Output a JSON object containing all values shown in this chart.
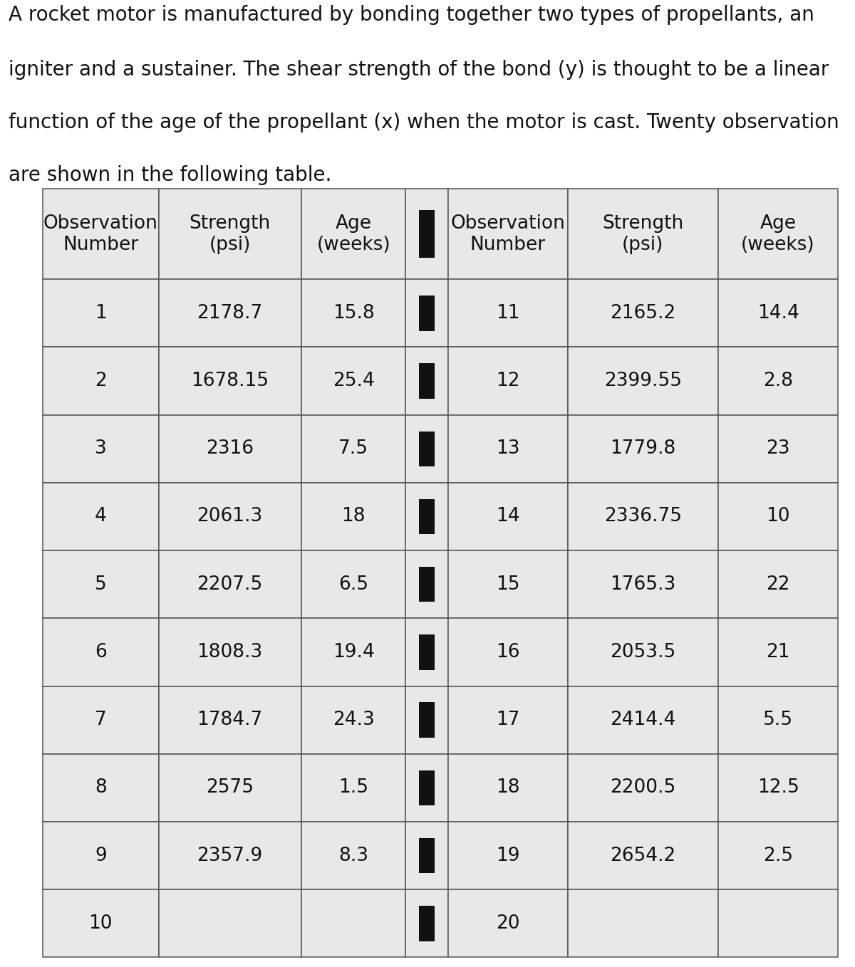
{
  "description_lines": [
    "A rocket motor is manufactured by bonding together two types of propellants, an",
    "igniter and a sustainer. The shear strength of the bond (y) is thought to be a linear",
    "function of the age of the propellant (x) when the motor is cast. Twenty observation",
    "are shown in the following table."
  ],
  "col_headers_left": [
    "Observation\nNumber",
    "Strength\n(psi)",
    "Age\n(weeks)"
  ],
  "col_headers_right": [
    "Observation\nNumber",
    "Strength\n(psi)",
    "Age\n(weeks)"
  ],
  "left_data": [
    [
      "1",
      "2178.7",
      "15.8"
    ],
    [
      "2",
      "1678.15",
      "25.4"
    ],
    [
      "3",
      "2316",
      "7.5"
    ],
    [
      "4",
      "2061.3",
      "18"
    ],
    [
      "5",
      "2207.5",
      "6.5"
    ],
    [
      "6",
      "1808.3",
      "19.4"
    ],
    [
      "7",
      "1784.7",
      "24.3"
    ],
    [
      "8",
      "2575",
      "1.5"
    ],
    [
      "9",
      "2357.9",
      "8.3"
    ],
    [
      "10",
      "",
      ""
    ]
  ],
  "right_data": [
    [
      "11",
      "2165.2",
      "14.4"
    ],
    [
      "12",
      "2399.55",
      "2.8"
    ],
    [
      "13",
      "1779.8",
      "23"
    ],
    [
      "14",
      "2336.75",
      "10"
    ],
    [
      "15",
      "1765.3",
      "22"
    ],
    [
      "16",
      "2053.5",
      "21"
    ],
    [
      "17",
      "2414.4",
      "5.5"
    ],
    [
      "18",
      "2200.5",
      "12.5"
    ],
    [
      "19",
      "2654.2",
      "2.5"
    ],
    [
      "20",
      "",
      ""
    ]
  ],
  "cell_bg_color": "#e8e8e8",
  "text_color": "#111111",
  "border_color": "#555555",
  "white_bg": "#ffffff",
  "desc_fontsize": 20,
  "table_fontsize": 19,
  "header_fontsize": 19
}
